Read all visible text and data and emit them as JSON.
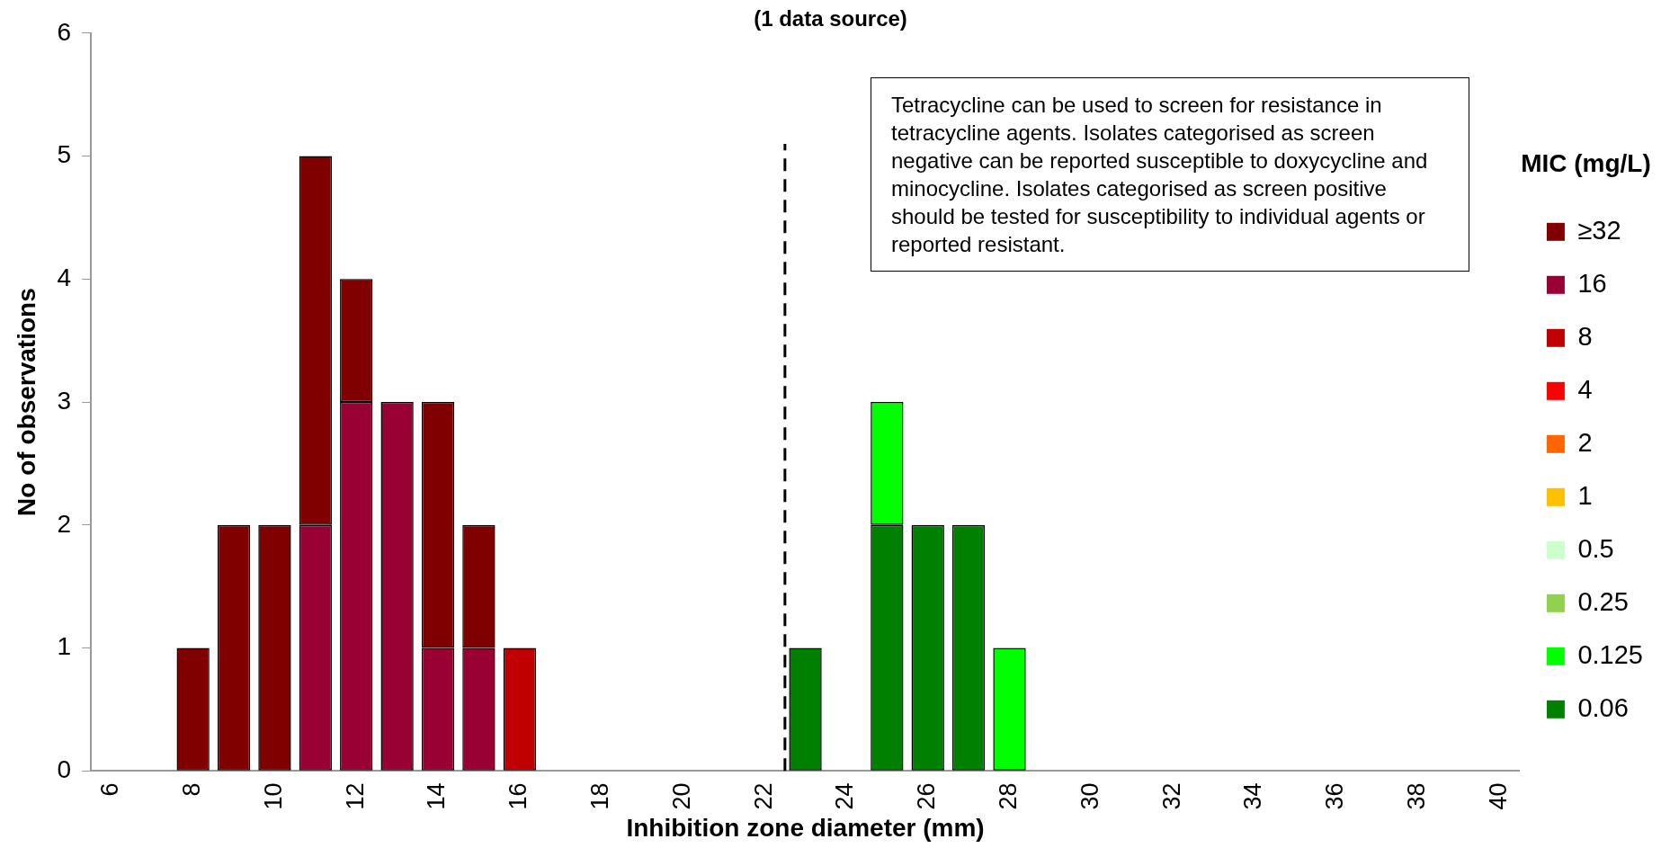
{
  "chart_data": {
    "type": "bar",
    "title": "(1 data source)",
    "xlabel": "Inhibition zone diameter (mm)",
    "ylabel": "No of observations",
    "legend_title": "MIC (mg/L)",
    "legend": "right",
    "stacked": true,
    "annotations": [
      "Tetracycline can be used to screen for resistance in tetracycline agents. Isolates categorised as screen negative can be reported susceptible to doxycycline and minocycline. Isolates categorised as screen positive should be tested for susceptibility to individual agents or reported resistant."
    ],
    "x": [
      6,
      7,
      8,
      9,
      10,
      11,
      12,
      13,
      14,
      15,
      16,
      17,
      18,
      19,
      20,
      21,
      22,
      23,
      24,
      25,
      26,
      27,
      28,
      29,
      30,
      31,
      32,
      33,
      34,
      35,
      36,
      37,
      38,
      39,
      40
    ],
    "xlim": [
      5.5,
      40.5
    ],
    "xticks": [
      6,
      8,
      10,
      12,
      14,
      16,
      18,
      20,
      22,
      24,
      26,
      28,
      30,
      32,
      34,
      36,
      38,
      40
    ],
    "ylim": [
      0,
      6
    ],
    "yticks": [
      0,
      1,
      2,
      3,
      4,
      5,
      6
    ],
    "ref_lines": [
      {
        "axis": "x",
        "value": 22.5,
        "color": "#000000",
        "line_style": "dashed"
      }
    ],
    "series": [
      {
        "name": "0.06",
        "color": "#008000",
        "values": [
          0,
          0,
          0,
          0,
          0,
          0,
          0,
          0,
          0,
          0,
          0,
          0,
          0,
          0,
          0,
          0,
          0,
          1,
          0,
          2,
          2,
          2,
          0,
          0,
          0,
          0,
          0,
          0,
          0,
          0,
          0,
          0,
          0,
          0,
          0
        ]
      },
      {
        "name": "0.125",
        "color": "#00ff00",
        "values": [
          0,
          0,
          0,
          0,
          0,
          0,
          0,
          0,
          0,
          0,
          0,
          0,
          0,
          0,
          0,
          0,
          0,
          0,
          0,
          1,
          0,
          0,
          1,
          0,
          0,
          0,
          0,
          0,
          0,
          0,
          0,
          0,
          0,
          0,
          0
        ]
      },
      {
        "name": "0.25",
        "color": "#92d050",
        "values": [
          0,
          0,
          0,
          0,
          0,
          0,
          0,
          0,
          0,
          0,
          0,
          0,
          0,
          0,
          0,
          0,
          0,
          0,
          0,
          0,
          0,
          0,
          0,
          0,
          0,
          0,
          0,
          0,
          0,
          0,
          0,
          0,
          0,
          0,
          0
        ]
      },
      {
        "name": "0.5",
        "color": "#ccffcc",
        "values": [
          0,
          0,
          0,
          0,
          0,
          0,
          0,
          0,
          0,
          0,
          0,
          0,
          0,
          0,
          0,
          0,
          0,
          0,
          0,
          0,
          0,
          0,
          0,
          0,
          0,
          0,
          0,
          0,
          0,
          0,
          0,
          0,
          0,
          0,
          0
        ]
      },
      {
        "name": "1",
        "color": "#ffc000",
        "values": [
          0,
          0,
          0,
          0,
          0,
          0,
          0,
          0,
          0,
          0,
          0,
          0,
          0,
          0,
          0,
          0,
          0,
          0,
          0,
          0,
          0,
          0,
          0,
          0,
          0,
          0,
          0,
          0,
          0,
          0,
          0,
          0,
          0,
          0,
          0
        ]
      },
      {
        "name": "2",
        "color": "#ff6600",
        "values": [
          0,
          0,
          0,
          0,
          0,
          0,
          0,
          0,
          0,
          0,
          0,
          0,
          0,
          0,
          0,
          0,
          0,
          0,
          0,
          0,
          0,
          0,
          0,
          0,
          0,
          0,
          0,
          0,
          0,
          0,
          0,
          0,
          0,
          0,
          0
        ]
      },
      {
        "name": "4",
        "color": "#ff0000",
        "values": [
          0,
          0,
          0,
          0,
          0,
          0,
          0,
          0,
          0,
          0,
          0,
          0,
          0,
          0,
          0,
          0,
          0,
          0,
          0,
          0,
          0,
          0,
          0,
          0,
          0,
          0,
          0,
          0,
          0,
          0,
          0,
          0,
          0,
          0,
          0
        ]
      },
      {
        "name": "8",
        "color": "#c00000",
        "values": [
          0,
          0,
          0,
          0,
          0,
          0,
          0,
          0,
          0,
          0,
          1,
          0,
          0,
          0,
          0,
          0,
          0,
          0,
          0,
          0,
          0,
          0,
          0,
          0,
          0,
          0,
          0,
          0,
          0,
          0,
          0,
          0,
          0,
          0,
          0
        ]
      },
      {
        "name": "16",
        "color": "#990033",
        "values": [
          0,
          0,
          0,
          0,
          0,
          2,
          3,
          3,
          1,
          1,
          0,
          0,
          0,
          0,
          0,
          0,
          0,
          0,
          0,
          0,
          0,
          0,
          0,
          0,
          0,
          0,
          0,
          0,
          0,
          0,
          0,
          0,
          0,
          0,
          0
        ]
      },
      {
        "name": "≥32",
        "color": "#800000",
        "values": [
          0,
          0,
          1,
          2,
          2,
          3,
          1,
          0,
          2,
          1,
          0,
          0,
          0,
          0,
          0,
          0,
          0,
          0,
          0,
          0,
          0,
          0,
          0,
          0,
          0,
          0,
          0,
          0,
          0,
          0,
          0,
          0,
          0,
          0,
          0
        ]
      }
    ]
  }
}
